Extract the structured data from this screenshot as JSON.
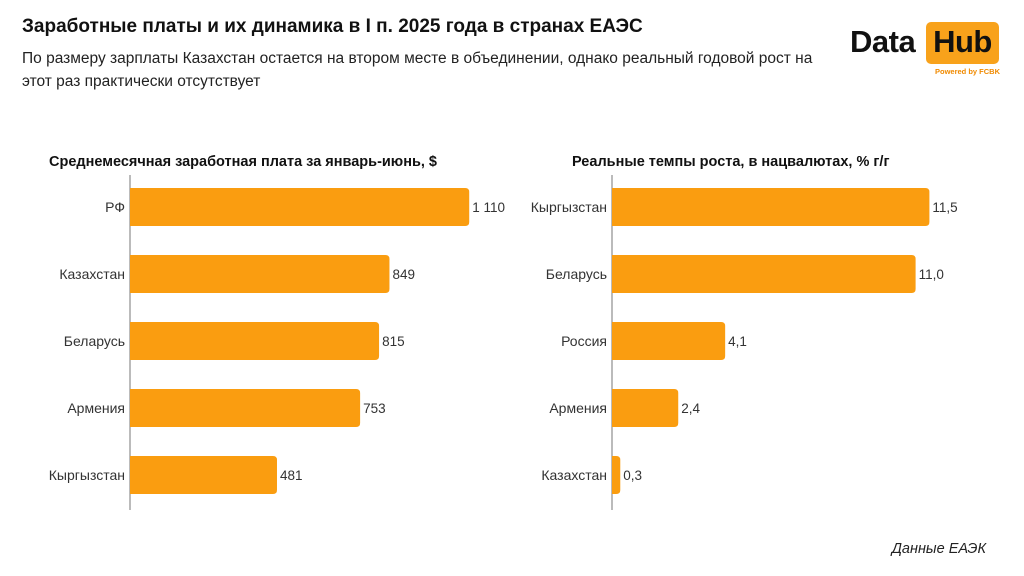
{
  "header": {
    "title": "Заработные платы и их динамика в I п. 2025 года в странах ЕАЭС",
    "subtitle": "По размеру зарплаты Казахстан остается на втором месте в объединении, однако реальный годовой рост на этот раз практически отсутствует"
  },
  "logo": {
    "data_text": "Data",
    "hub_text": "Hub",
    "powered_text": "Powered by FCBK",
    "accent_color": "#f8a21b"
  },
  "source": "Данные ЕАЭК",
  "colors": {
    "bar": "#fa9d10"
  },
  "chart_data": [
    {
      "type": "bar",
      "orientation": "horizontal",
      "title": "Среднемесячная заработная плата за январь-июнь, $",
      "categories": [
        "РФ",
        "Казахстан",
        "Беларусь",
        "Армения",
        "Кыргызстан"
      ],
      "values": [
        1110,
        849,
        815,
        753,
        481
      ],
      "value_labels": [
        "1 110",
        "849",
        "815",
        "753",
        "481"
      ],
      "xlim": [
        0,
        1250
      ],
      "grid": false
    },
    {
      "type": "bar",
      "orientation": "horizontal",
      "title": "Реальные темпы роста, в нацвалютах, % г/г",
      "categories": [
        "Кыргызстан",
        "Беларусь",
        "Россия",
        "Армения",
        "Казахстан"
      ],
      "values": [
        11.5,
        11.0,
        4.1,
        2.4,
        0.3
      ],
      "value_labels": [
        "11,5",
        "11,0",
        "4,1",
        "2,4",
        "0,3"
      ],
      "xlim": [
        0,
        12.5
      ],
      "grid": false
    }
  ]
}
